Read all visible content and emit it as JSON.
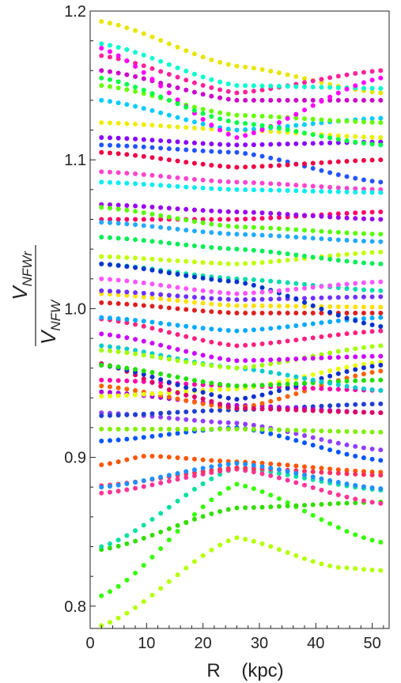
{
  "chart_data": {
    "type": "scatter",
    "xlabel": "R    (kpc)",
    "ylabel": {
      "numerator": "V",
      "numerator_sub": "NFWr",
      "denominator": "V",
      "denominator_sub": "NFW"
    },
    "xlim": [
      0,
      53
    ],
    "ylim": [
      0.785,
      1.2
    ],
    "xticks": [
      0,
      10,
      20,
      30,
      40,
      50
    ],
    "yticks": [
      0.8,
      0.9,
      1.0,
      1.1,
      1.2
    ],
    "ytick_labels": [
      "0.8",
      "0.9",
      "1.0",
      "1.1",
      "1.2"
    ],
    "grid": false,
    "x_samples": [
      2,
      3.5,
      5,
      6.5,
      8,
      9.5,
      11,
      12.5,
      14,
      15.5,
      17,
      18.5,
      20,
      21.5,
      23,
      24.5,
      26,
      27.5,
      29,
      30.5,
      32,
      33.5,
      35,
      36.5,
      38,
      39.5,
      41,
      42.5,
      44,
      45.5,
      47,
      48.5,
      50,
      51.5
    ],
    "series": [
      {
        "color": "#e6e600",
        "points": [
          [
            2,
            1.193
          ],
          [
            26,
            1.163
          ],
          [
            51.5,
            1.145
          ]
        ]
      },
      {
        "color": "#b4ff00",
        "points": [
          [
            2,
            0.787
          ],
          [
            26,
            0.846
          ],
          [
            44,
            0.826
          ],
          [
            51.5,
            0.824
          ]
        ]
      },
      {
        "color": "#33ff00",
        "points": [
          [
            2,
            0.807
          ],
          [
            26,
            0.882
          ],
          [
            51.5,
            0.843
          ]
        ]
      },
      {
        "color": "#33dd00",
        "points": [
          [
            2,
            0.838
          ],
          [
            26,
            0.866
          ],
          [
            51.5,
            0.87
          ]
        ]
      },
      {
        "color": "#00e0a0",
        "points": [
          [
            2,
            0.84
          ],
          [
            26,
            0.893
          ],
          [
            51.5,
            0.878
          ]
        ]
      },
      {
        "color": "#ff3399",
        "points": [
          [
            2,
            0.876
          ],
          [
            26,
            0.892
          ],
          [
            51.5,
            0.869
          ]
        ]
      },
      {
        "color": "#ff5500",
        "points": [
          [
            2,
            0.895
          ],
          [
            10,
            0.901
          ],
          [
            26,
            0.897
          ],
          [
            51.5,
            0.89
          ]
        ]
      },
      {
        "color": "#ff3060",
        "points": [
          [
            2,
            0.881
          ],
          [
            26,
            0.893
          ],
          [
            51.5,
            0.888
          ]
        ]
      },
      {
        "color": "#2090ff",
        "points": [
          [
            2,
            0.88
          ],
          [
            26,
            0.896
          ],
          [
            51.5,
            0.879
          ]
        ]
      },
      {
        "color": "#0055ff",
        "points": [
          [
            2,
            0.911
          ],
          [
            26,
            0.92
          ],
          [
            51.5,
            0.898
          ]
        ]
      },
      {
        "color": "#9040ff",
        "points": [
          [
            2,
            0.93
          ],
          [
            26,
            0.923
          ],
          [
            51.5,
            0.905
          ]
        ]
      },
      {
        "color": "#80ee00",
        "points": [
          [
            2,
            0.919
          ],
          [
            26,
            0.919
          ],
          [
            51.5,
            0.917
          ]
        ]
      },
      {
        "color": "#2040d0",
        "points": [
          [
            2,
            0.928
          ],
          [
            26,
            0.932
          ],
          [
            51.5,
            0.936
          ]
        ]
      },
      {
        "color": "#aa00dd",
        "points": [
          [
            2,
            0.944
          ],
          [
            26,
            0.935
          ],
          [
            51.5,
            0.93
          ]
        ]
      },
      {
        "color": "#ff6000",
        "points": [
          [
            2,
            0.948
          ],
          [
            26,
            0.933
          ],
          [
            51.5,
            0.958
          ]
        ]
      },
      {
        "color": "#ff00aa",
        "points": [
          [
            2,
            0.952
          ],
          [
            26,
            0.948
          ],
          [
            51.5,
            0.945
          ]
        ]
      },
      {
        "color": "#e8ff00",
        "points": [
          [
            2,
            0.941
          ],
          [
            26,
            0.946
          ],
          [
            51.5,
            0.964
          ]
        ]
      },
      {
        "color": "#dd0066",
        "points": [
          [
            2,
            0.963
          ],
          [
            18,
            0.941
          ],
          [
            26,
            0.933
          ],
          [
            51.5,
            0.93
          ]
        ]
      },
      {
        "color": "#1030cc",
        "points": [
          [
            2,
            0.962
          ],
          [
            26,
            0.939
          ],
          [
            51.5,
            0.962
          ]
        ]
      },
      {
        "color": "#20e000",
        "points": [
          [
            2,
            0.962
          ],
          [
            26,
            0.948
          ],
          [
            51.5,
            0.952
          ]
        ]
      },
      {
        "color": "#00cccc",
        "points": [
          [
            2,
            0.975
          ],
          [
            26,
            0.96
          ],
          [
            51.5,
            0.945
          ]
        ]
      },
      {
        "color": "#a0ff00",
        "points": [
          [
            2,
            0.972
          ],
          [
            26,
            0.96
          ],
          [
            51.5,
            0.975
          ]
        ]
      },
      {
        "color": "#cc00ff",
        "points": [
          [
            2,
            0.983
          ],
          [
            26,
            0.965
          ],
          [
            51.5,
            0.968
          ]
        ]
      },
      {
        "color": "#ff2080",
        "points": [
          [
            2,
            0.993
          ],
          [
            26,
            0.975
          ],
          [
            51.5,
            0.985
          ]
        ]
      },
      {
        "color": "#00aaff",
        "points": [
          [
            2,
            0.994
          ],
          [
            26,
            0.985
          ],
          [
            51.5,
            0.994
          ]
        ]
      },
      {
        "color": "#dd2020",
        "points": [
          [
            2,
            1.004
          ],
          [
            26,
            0.997
          ],
          [
            51.5,
            0.997
          ]
        ]
      },
      {
        "color": "#ffe000",
        "points": [
          [
            2,
            1.01
          ],
          [
            26,
            1.002
          ],
          [
            51.5,
            1.001
          ]
        ]
      },
      {
        "color": "#7030ff",
        "points": [
          [
            2,
            1.012
          ],
          [
            26,
            1.006
          ],
          [
            51.5,
            1.008
          ]
        ]
      },
      {
        "color": "#00ddaa",
        "points": [
          [
            2,
            1.03
          ],
          [
            26,
            1.02
          ],
          [
            51.5,
            1.012
          ]
        ]
      },
      {
        "color": "#0033cc",
        "points": [
          [
            2,
            1.03
          ],
          [
            26,
            1.018
          ],
          [
            51.5,
            0.988
          ]
        ]
      },
      {
        "color": "#ff55ff",
        "points": [
          [
            2,
            1.02
          ],
          [
            26,
            1.01
          ],
          [
            51.5,
            1.018
          ]
        ]
      },
      {
        "color": "#c0ff00",
        "points": [
          [
            2,
            1.035
          ],
          [
            26,
            1.03
          ],
          [
            51.5,
            1.038
          ]
        ]
      },
      {
        "color": "#00ee55",
        "points": [
          [
            2,
            1.048
          ],
          [
            26,
            1.04
          ],
          [
            51.5,
            1.03
          ]
        ]
      },
      {
        "color": "#ff0066",
        "points": [
          [
            2,
            1.06
          ],
          [
            26,
            1.06
          ],
          [
            51.5,
            1.065
          ]
        ]
      },
      {
        "color": "#22aaff",
        "points": [
          [
            2,
            1.058
          ],
          [
            26,
            1.05
          ],
          [
            51.5,
            1.045
          ]
        ]
      },
      {
        "color": "#9900ee",
        "points": [
          [
            2,
            1.07
          ],
          [
            26,
            1.065
          ],
          [
            51.5,
            1.06
          ]
        ]
      },
      {
        "color": "#55ff00",
        "points": [
          [
            2,
            1.068
          ],
          [
            26,
            1.055
          ],
          [
            51.5,
            1.05
          ]
        ]
      },
      {
        "color": "#ff44cc",
        "points": [
          [
            2,
            1.092
          ],
          [
            26,
            1.085
          ],
          [
            51.5,
            1.08
          ]
        ]
      },
      {
        "color": "#00eeee",
        "points": [
          [
            2,
            1.085
          ],
          [
            26,
            1.08
          ],
          [
            51.5,
            1.078
          ]
        ]
      },
      {
        "color": "#2255ff",
        "points": [
          [
            2,
            1.11
          ],
          [
            26,
            1.105
          ],
          [
            51.5,
            1.085
          ]
        ]
      },
      {
        "color": "#ee0044",
        "points": [
          [
            2,
            1.105
          ],
          [
            26,
            1.095
          ],
          [
            51.5,
            1.1
          ]
        ]
      },
      {
        "color": "#8800ff",
        "points": [
          [
            2,
            1.115
          ],
          [
            26,
            1.11
          ],
          [
            51.5,
            1.112
          ]
        ]
      },
      {
        "color": "#eeee00",
        "points": [
          [
            2,
            1.125
          ],
          [
            26,
            1.12
          ],
          [
            51.5,
            1.115
          ]
        ]
      },
      {
        "color": "#00ccff",
        "points": [
          [
            2,
            1.14
          ],
          [
            26,
            1.12
          ],
          [
            51.5,
            1.128
          ]
        ]
      },
      {
        "color": "#66ff00",
        "points": [
          [
            2,
            1.15
          ],
          [
            26,
            1.13
          ],
          [
            51.5,
            1.125
          ]
        ]
      },
      {
        "color": "#cc00cc",
        "points": [
          [
            2,
            1.16
          ],
          [
            26,
            1.14
          ],
          [
            51.5,
            1.14
          ]
        ]
      },
      {
        "color": "#ff2299",
        "points": [
          [
            2,
            1.17
          ],
          [
            26,
            1.145
          ],
          [
            51.5,
            1.16
          ]
        ]
      },
      {
        "color": "#00ffcc",
        "points": [
          [
            2,
            1.178
          ],
          [
            26,
            1.15
          ],
          [
            51.5,
            1.148
          ]
        ]
      },
      {
        "color": "#ff00ff",
        "points": [
          [
            2,
            1.175
          ],
          [
            26,
            1.115
          ],
          [
            51.5,
            1.155
          ]
        ]
      },
      {
        "color": "#00ff44",
        "points": [
          [
            2,
            1.155
          ],
          [
            26,
            1.125
          ],
          [
            51.5,
            1.11
          ]
        ]
      }
    ]
  }
}
